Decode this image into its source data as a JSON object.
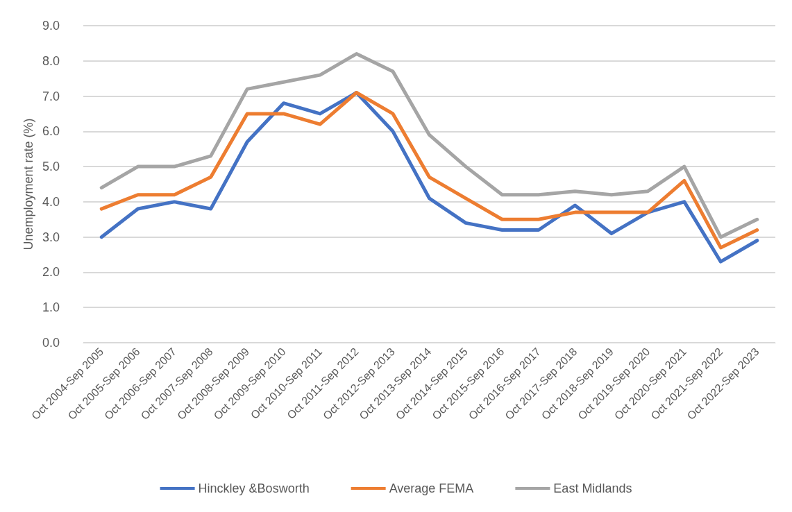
{
  "chart_data": {
    "type": "line",
    "ylabel": "Unemployment rate (%)",
    "categories": [
      "Oct 2004-Sep 2005",
      "Oct 2005-Sep 2006",
      "Oct 2006-Sep 2007",
      "Oct 2007-Sep 2008",
      "Oct 2008-Sep 2009",
      "Oct 2009-Sep 2010",
      "Oct 2010-Sep 2011",
      "Oct 2011-Sep 2012",
      "Oct 2012-Sep 2013",
      "Oct 2013-Sep 2014",
      "Oct 2014-Sep 2015",
      "Oct 2015-Sep 2016",
      "Oct 2016-Sep 2017",
      "Oct 2017-Sep 2018",
      "Oct 2018-Sep 2019",
      "Oct 2019-Sep 2020",
      "Oct 2020-Sep 2021",
      "Oct 2021-Sep 2022",
      "Oct 2022-Sep 2023"
    ],
    "series": [
      {
        "name": "Hinckley &Bosworth",
        "color": "#4472c4",
        "values": [
          3.0,
          3.8,
          4.0,
          3.8,
          5.7,
          6.8,
          6.5,
          7.1,
          6.0,
          4.1,
          3.4,
          3.2,
          3.2,
          3.9,
          3.1,
          3.7,
          4.0,
          2.3,
          2.9
        ]
      },
      {
        "name": "Average FEMA",
        "color": "#ed7d31",
        "values": [
          3.8,
          4.2,
          4.2,
          4.7,
          6.5,
          6.5,
          6.2,
          7.1,
          6.5,
          4.7,
          4.1,
          3.5,
          3.5,
          3.7,
          3.7,
          3.7,
          4.6,
          2.7,
          3.2
        ]
      },
      {
        "name": "East Midlands",
        "color": "#a5a5a5",
        "values": [
          4.4,
          5.0,
          5.0,
          5.3,
          7.2,
          7.4,
          7.6,
          8.2,
          7.7,
          5.9,
          5.0,
          4.2,
          4.2,
          4.3,
          4.2,
          4.3,
          5.0,
          3.0,
          3.5
        ]
      }
    ],
    "ylim": [
      0,
      9
    ],
    "yticks": [
      {
        "value": 0,
        "label": "0.0"
      },
      {
        "value": 1,
        "label": "1.0"
      },
      {
        "value": 2,
        "label": "2.0"
      },
      {
        "value": 3,
        "label": "3.0"
      },
      {
        "value": 4,
        "label": "4.0"
      },
      {
        "value": 5,
        "label": "5.0"
      },
      {
        "value": 6,
        "label": "6.0"
      },
      {
        "value": 7,
        "label": "7.0"
      },
      {
        "value": 8,
        "label": "8.0"
      },
      {
        "value": 9,
        "label": "9.0"
      }
    ],
    "grid": "y",
    "legend": "bottom",
    "marker": "none",
    "line_style": "solid"
  }
}
